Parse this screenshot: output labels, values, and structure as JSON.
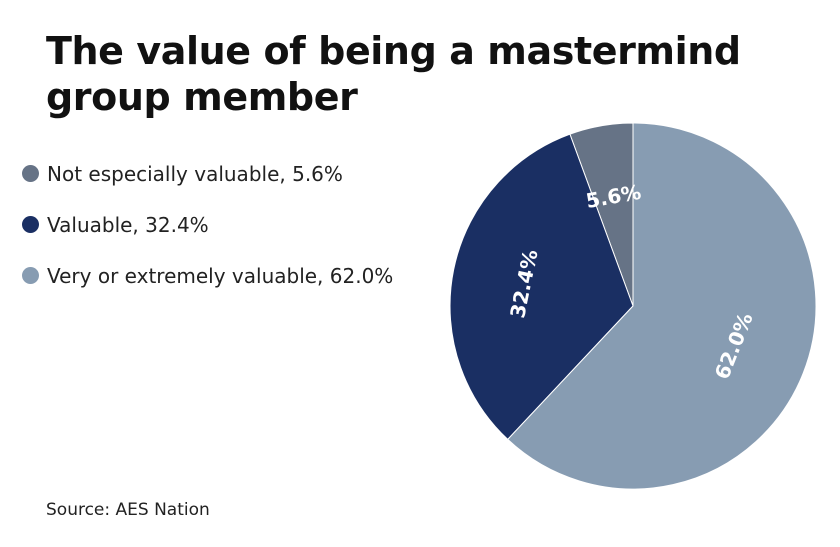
{
  "chart_data": {
    "type": "pie",
    "title": "The value of being a mastermind group member",
    "categories": [
      "Not especially valuable",
      "Valuable",
      "Very or extremely valuable"
    ],
    "values": [
      5.6,
      32.4,
      62.0
    ],
    "value_labels": [
      "5.6%",
      "32.4%",
      "62.0%"
    ],
    "legend_labels": [
      "Not especially valuable, 5.6%",
      "Valuable, 32.4%",
      "Very or extremely valuable, 62.0%"
    ],
    "colors": [
      "#667386",
      "#1a2f63",
      "#879cb2"
    ],
    "label_color": "#ffffff",
    "legend_placement": "left",
    "start_angle": "top",
    "direction": "counterclockwise"
  },
  "source": "Source: AES Nation"
}
